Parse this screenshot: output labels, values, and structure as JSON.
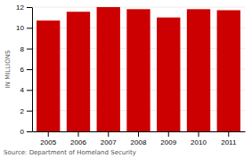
{
  "chart_data": {
    "type": "bar",
    "ylabel": "IN MILLIONS",
    "annotation": "Source: Department of Homeland Security",
    "categories": [
      "2005",
      "2006",
      "2007",
      "2008",
      "2009",
      "2010",
      "2011"
    ],
    "values": [
      10.7,
      11.55,
      12.0,
      11.8,
      11.0,
      11.8,
      11.7
    ],
    "color": "#cc0000",
    "ylim": [
      0,
      12
    ],
    "yticks": [
      0,
      2,
      4,
      6,
      8,
      10,
      12
    ],
    "grid": true
  }
}
